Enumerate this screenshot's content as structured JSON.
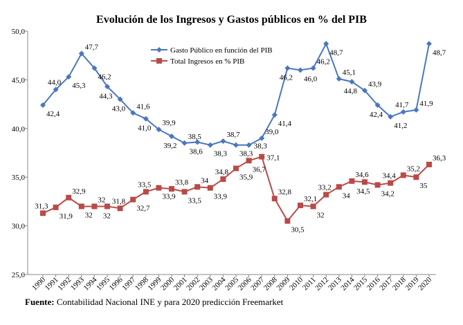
{
  "chart_data": {
    "type": "line",
    "title": "Evolución de los Ingresos y Gastos públicos en % del PIB",
    "xlabel": "",
    "ylabel": "",
    "ylim": [
      25,
      50
    ],
    "yticks": [
      "25,0",
      "30,0",
      "35,0",
      "40,0",
      "45,0",
      "50,0"
    ],
    "grid": false,
    "legend": "top-center",
    "x": [
      "1990",
      "1991",
      "1992",
      "1993",
      "1994",
      "1995",
      "1996",
      "1997",
      "1998",
      "1999",
      "2000",
      "2001",
      "2002",
      "2003",
      "2004",
      "2005",
      "2006",
      "2007",
      "2008",
      "2009",
      "2010",
      "2011",
      "2012",
      "2013",
      "2014",
      "2015",
      "2016",
      "2017",
      "2018",
      "2019",
      "2020"
    ],
    "series": [
      {
        "name": "Gasto Público en función del PIB",
        "color": "#4a76c0",
        "marker": "diamond",
        "values": [
          42.4,
          44.0,
          45.3,
          47.7,
          46.2,
          44.3,
          43.0,
          41.6,
          41.0,
          39.9,
          39.2,
          38.5,
          38.6,
          38.3,
          38.7,
          38.3,
          38.3,
          39.0,
          41.4,
          46.2,
          46.0,
          46.2,
          48.7,
          45.1,
          44.8,
          43.9,
          42.4,
          41.2,
          41.7,
          41.9,
          48.7
        ],
        "labels": [
          "42,4",
          "44,0",
          "45,3",
          "47,7",
          "46,2",
          "44,3",
          "43,0",
          "41,6",
          "41,0",
          "39,9",
          "39,2",
          "38,5",
          "38,6",
          "38,3",
          "38,7",
          "38,3",
          "38,3",
          "39,0",
          "41,4",
          "46,2",
          "46,0",
          "46,2",
          "48,7",
          "45,1",
          "44,8",
          "43,9",
          "42,4",
          "41,2",
          "41,7",
          "41,9",
          "48,7"
        ]
      },
      {
        "name": "Total Ingresos en % PIB",
        "color": "#b94a48",
        "marker": "square",
        "values": [
          31.3,
          31.9,
          32.9,
          32,
          32,
          32,
          31.8,
          32.7,
          33.5,
          33.9,
          33.8,
          33.5,
          34,
          33.9,
          34.8,
          35.9,
          36.7,
          37.1,
          32.8,
          30.5,
          32.1,
          32,
          33.2,
          34,
          34.6,
          34.5,
          34.2,
          34.4,
          35.2,
          35,
          36.3
        ],
        "labels": [
          "31,3",
          "31,9",
          "32,9",
          "32",
          "32",
          "32",
          "31,8",
          "32,7",
          "33,5",
          "33,9",
          "33,8",
          "33,5",
          "34",
          "33,9",
          "34,8",
          "35,9",
          "36,7",
          "37,1",
          "32,8",
          "30,5",
          "32,1",
          "32",
          "33,2",
          "34",
          "34,6",
          "34,5",
          "34,2",
          "34,4",
          "35,2",
          "35",
          "36,3"
        ]
      }
    ]
  },
  "source": {
    "label": "Fuente:",
    "text": " Contabilidad Nacional INE y para 2020 predicción Freemarket"
  }
}
